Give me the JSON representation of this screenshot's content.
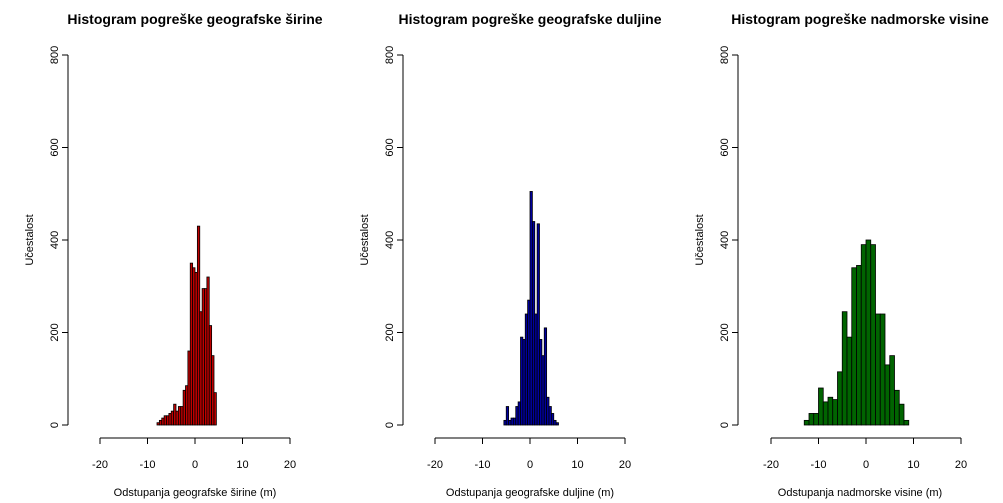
{
  "chart_data": [
    {
      "type": "bar",
      "title": "Histogram pogreške geografske širine",
      "xlabel": "Odstupanja geografske širine (m)",
      "ylabel": "Učestalost",
      "xlim": [
        -20,
        20
      ],
      "ylim": [
        0,
        800
      ],
      "xticks": [
        "-20",
        "-10",
        "0",
        "10",
        "20"
      ],
      "yticks": [
        "0",
        "200",
        "400",
        "600",
        "800"
      ],
      "bin_width": 0.5,
      "bars": [
        {
          "x0": -8.0,
          "count": 5
        },
        {
          "x0": -7.5,
          "count": 10
        },
        {
          "x0": -7.0,
          "count": 15
        },
        {
          "x0": -6.5,
          "count": 20
        },
        {
          "x0": -6.0,
          "count": 20
        },
        {
          "x0": -5.5,
          "count": 25
        },
        {
          "x0": -5.0,
          "count": 30
        },
        {
          "x0": -4.5,
          "count": 45
        },
        {
          "x0": -4.0,
          "count": 30
        },
        {
          "x0": -3.5,
          "count": 40
        },
        {
          "x0": -3.0,
          "count": 40
        },
        {
          "x0": -2.5,
          "count": 75
        },
        {
          "x0": -2.0,
          "count": 85
        },
        {
          "x0": -1.5,
          "count": 160
        },
        {
          "x0": -1.0,
          "count": 350
        },
        {
          "x0": -0.5,
          "count": 340
        },
        {
          "x0": 0.0,
          "count": 330
        },
        {
          "x0": 0.5,
          "count": 430
        },
        {
          "x0": 1.0,
          "count": 245
        },
        {
          "x0": 1.5,
          "count": 295
        },
        {
          "x0": 2.0,
          "count": 295
        },
        {
          "x0": 2.5,
          "count": 320
        },
        {
          "x0": 3.0,
          "count": 215
        },
        {
          "x0": 3.5,
          "count": 150
        },
        {
          "x0": 4.0,
          "count": 70
        }
      ],
      "fill": "#c00000",
      "stroke": "#000000",
      "grid": false
    },
    {
      "type": "bar",
      "title": "Histogram pogreške geografske duljine",
      "xlabel": "Odstupanja geografske duljine (m)",
      "ylabel": "Učestalost",
      "xlim": [
        -20,
        20
      ],
      "ylim": [
        0,
        800
      ],
      "xticks": [
        "-20",
        "-10",
        "0",
        "10",
        "20"
      ],
      "yticks": [
        "0",
        "200",
        "400",
        "600",
        "800"
      ],
      "bin_width": 0.5,
      "bars": [
        {
          "x0": -5.5,
          "count": 10
        },
        {
          "x0": -5.0,
          "count": 40
        },
        {
          "x0": -4.5,
          "count": 10
        },
        {
          "x0": -4.0,
          "count": 15
        },
        {
          "x0": -3.5,
          "count": 15
        },
        {
          "x0": -3.0,
          "count": 40
        },
        {
          "x0": -2.5,
          "count": 50
        },
        {
          "x0": -2.0,
          "count": 190
        },
        {
          "x0": -1.5,
          "count": 185
        },
        {
          "x0": -1.0,
          "count": 240
        },
        {
          "x0": -0.5,
          "count": 270
        },
        {
          "x0": 0.0,
          "count": 505
        },
        {
          "x0": 0.5,
          "count": 440
        },
        {
          "x0": 1.0,
          "count": 240
        },
        {
          "x0": 1.5,
          "count": 435
        },
        {
          "x0": 2.0,
          "count": 185
        },
        {
          "x0": 2.5,
          "count": 150
        },
        {
          "x0": 3.0,
          "count": 210
        },
        {
          "x0": 3.5,
          "count": 60
        },
        {
          "x0": 4.0,
          "count": 40
        },
        {
          "x0": 4.5,
          "count": 25
        },
        {
          "x0": 5.0,
          "count": 10
        },
        {
          "x0": 5.5,
          "count": 5
        }
      ],
      "fill": "#0000a0",
      "stroke": "#000000",
      "grid": false
    },
    {
      "type": "bar",
      "title": "Histogram pogreške nadmorske visine",
      "xlabel": "Odstupanja nadmorske visine (m)",
      "ylabel": "Učestalost",
      "xlim": [
        -20,
        20
      ],
      "ylim": [
        0,
        800
      ],
      "xticks": [
        "-20",
        "-10",
        "0",
        "10",
        "20"
      ],
      "yticks": [
        "0",
        "200",
        "400",
        "600",
        "800"
      ],
      "bin_width": 1,
      "bars": [
        {
          "x0": -13,
          "count": 10
        },
        {
          "x0": -12,
          "count": 25
        },
        {
          "x0": -11,
          "count": 25
        },
        {
          "x0": -10,
          "count": 80
        },
        {
          "x0": -9,
          "count": 50
        },
        {
          "x0": -8,
          "count": 60
        },
        {
          "x0": -7,
          "count": 55
        },
        {
          "x0": -6,
          "count": 115
        },
        {
          "x0": -5,
          "count": 245
        },
        {
          "x0": -4,
          "count": 190
        },
        {
          "x0": -3,
          "count": 340
        },
        {
          "x0": -2,
          "count": 345
        },
        {
          "x0": -1,
          "count": 390
        },
        {
          "x0": 0,
          "count": 400
        },
        {
          "x0": 1,
          "count": 390
        },
        {
          "x0": 2,
          "count": 240
        },
        {
          "x0": 3,
          "count": 240
        },
        {
          "x0": 4,
          "count": 130
        },
        {
          "x0": 5,
          "count": 150
        },
        {
          "x0": 6,
          "count": 75
        },
        {
          "x0": 7,
          "count": 45
        },
        {
          "x0": 8,
          "count": 10
        }
      ],
      "fill": "#006400",
      "stroke": "#000000",
      "grid": false
    }
  ]
}
